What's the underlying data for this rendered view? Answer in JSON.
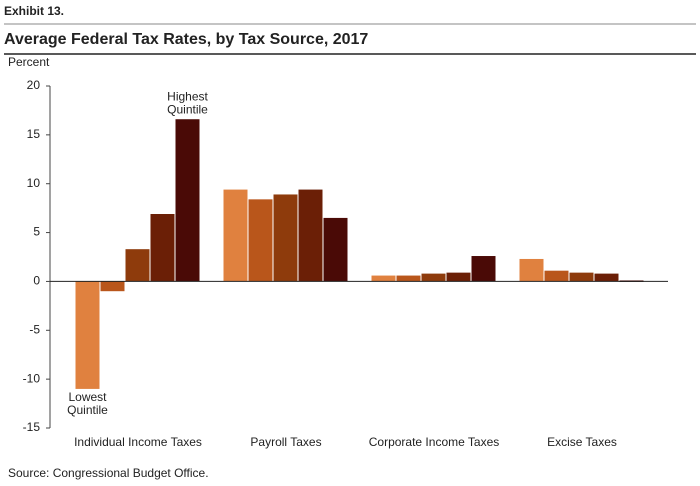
{
  "exhibit": "Exhibit 13.",
  "source": "Source: Congressional Budget Office.",
  "chart_data": {
    "type": "bar",
    "title": "Average Federal Tax Rates, by Tax Source, 2017",
    "y_label": "Percent",
    "categories": [
      "Individual Income Taxes",
      "Payroll Taxes",
      "Corporate Income Taxes",
      "Excise Taxes"
    ],
    "series": [
      {
        "color": "#e0813f",
        "values": [
          -11,
          9.4,
          0.6,
          2.3
        ]
      },
      {
        "color": "#b9561b",
        "values": [
          -1,
          8.4,
          0.6,
          1.1
        ]
      },
      {
        "color": "#8e3b0c",
        "values": [
          3.3,
          8.9,
          0.8,
          0.9
        ]
      },
      {
        "color": "#6b1f06",
        "values": [
          6.9,
          9.4,
          0.9,
          0.8
        ]
      },
      {
        "color": "#4a0a06",
        "values": [
          16.6,
          6.5,
          2.6,
          0.1
        ]
      }
    ],
    "annotations": [
      {
        "lines": [
          "Lowest",
          "Quintile"
        ]
      },
      {
        "lines": [
          "Highest",
          "Quintile"
        ]
      }
    ],
    "ylim": [
      -15,
      20
    ],
    "yticks": [
      -15,
      -10,
      -5,
      0,
      5,
      10,
      15,
      20
    ],
    "grid": false
  }
}
